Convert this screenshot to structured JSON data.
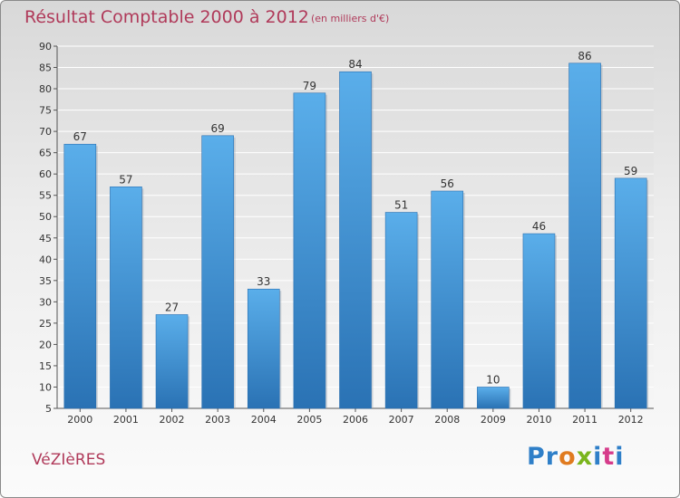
{
  "header": {
    "title": "Résultat Comptable 2000 à 2012",
    "subtitle": "(en milliers d'€)"
  },
  "footer": {
    "commune": "VéZIèRES",
    "logo_letters": [
      "P",
      "r",
      "o",
      "x",
      "i",
      "t",
      "i"
    ],
    "logo_colors": [
      "#2f7fc8",
      "#2f7fc8",
      "#e07b1f",
      "#7ab51d",
      "#2f7fc8",
      "#d63c8b",
      "#2f7fc8"
    ]
  },
  "chart_data": {
    "type": "bar",
    "title": "Résultat Comptable 2000 à 2012",
    "subtitle": "(en milliers d'€)",
    "categories": [
      "2000",
      "2001",
      "2002",
      "2003",
      "2004",
      "2005",
      "2006",
      "2007",
      "2008",
      "2009",
      "2010",
      "2011",
      "2012"
    ],
    "values": [
      67,
      57,
      27,
      69,
      33,
      79,
      84,
      51,
      56,
      10,
      46,
      86,
      59
    ],
    "ylim": [
      5,
      90
    ],
    "yticks": [
      5,
      10,
      15,
      20,
      25,
      30,
      35,
      40,
      45,
      50,
      55,
      60,
      65,
      70,
      75,
      80,
      85,
      90
    ],
    "grid": true,
    "bar_color": "#4a9fe0",
    "bar_color_dark": "#2a6fb0"
  }
}
